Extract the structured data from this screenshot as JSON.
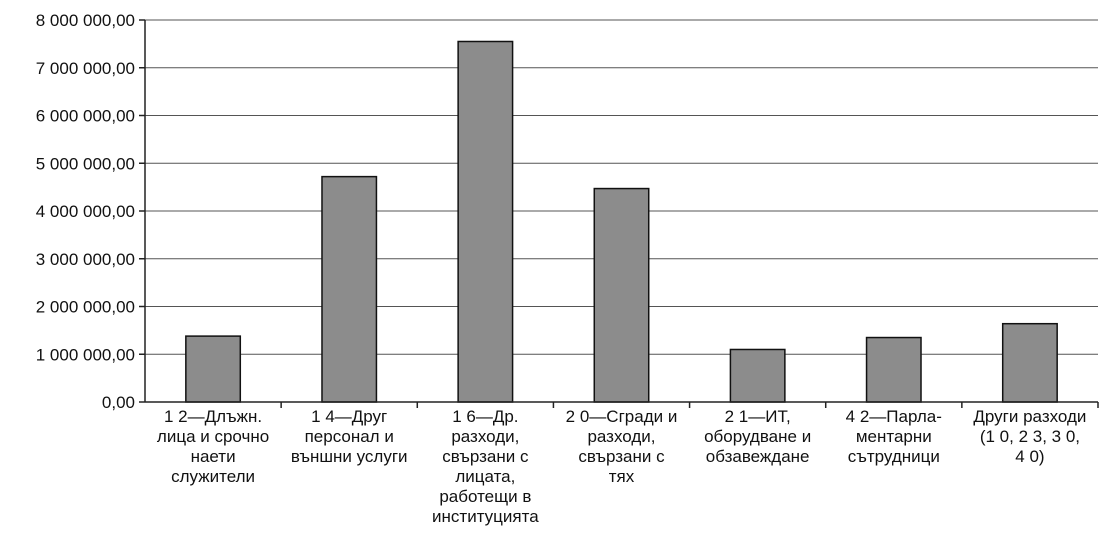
{
  "chart_data": {
    "type": "bar",
    "categories": [
      [
        "1 2—Длъжн.",
        "лица и срочно",
        "наети",
        "служители"
      ],
      [
        "1 4—Друг",
        "персонал и",
        "външни услуги"
      ],
      [
        "1 6—Др.",
        "разходи,",
        "свързани с",
        "лицата,",
        "работещи в",
        "институцията"
      ],
      [
        "2 0—Сгради и",
        "разходи,",
        "свързани с",
        "тях"
      ],
      [
        "2 1—ИТ,",
        "оборудване и",
        "обзавеждане"
      ],
      [
        "4 2—Парла-",
        "ментарни",
        "сътрудници"
      ],
      [
        "Други разходи",
        "(1 0, 2 3, 3 0,",
        "4 0)"
      ]
    ],
    "values": [
      1380000,
      4720000,
      7550000,
      4470000,
      1100000,
      1350000,
      1640000
    ],
    "ylim": [
      0,
      8000000
    ],
    "yticks": [
      "0,00",
      "1 000 000,00",
      "2 000 000,00",
      "3 000 000,00",
      "4 000 000,00",
      "5 000 000,00",
      "6 000 000,00",
      "7 000 000,00",
      "8 000 000,00"
    ],
    "grid": true,
    "bar_color": "#8c8c8c",
    "title": "",
    "xlabel": "",
    "ylabel": ""
  }
}
